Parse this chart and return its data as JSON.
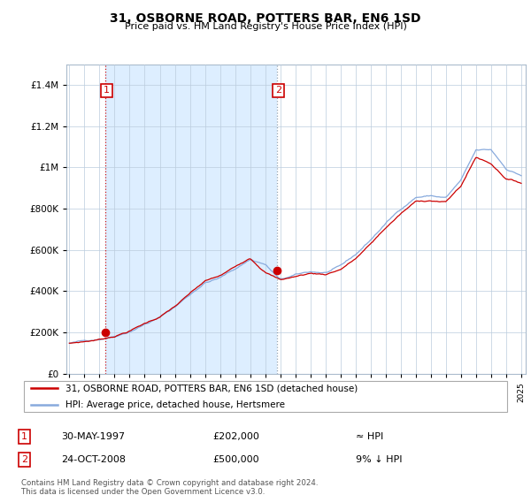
{
  "title": "31, OSBORNE ROAD, POTTERS BAR, EN6 1SD",
  "subtitle": "Price paid vs. HM Land Registry's House Price Index (HPI)",
  "legend_line1": "31, OSBORNE ROAD, POTTERS BAR, EN6 1SD (detached house)",
  "legend_line2": "HPI: Average price, detached house, Hertsmere",
  "annotation1_date": "30-MAY-1997",
  "annotation1_price": "£202,000",
  "annotation1_hpi": "≈ HPI",
  "annotation2_date": "24-OCT-2008",
  "annotation2_price": "£500,000",
  "annotation2_hpi": "9% ↓ HPI",
  "footer": "Contains HM Land Registry data © Crown copyright and database right 2024.\nThis data is licensed under the Open Government Licence v3.0.",
  "red_color": "#cc0000",
  "blue_color": "#88aadd",
  "shade_color": "#ddeeff",
  "ylim": [
    0,
    1500000
  ],
  "yticks": [
    0,
    200000,
    400000,
    600000,
    800000,
    1000000,
    1200000,
    1400000
  ],
  "sale1_x": 1997.41,
  "sale1_y": 202000,
  "sale2_x": 2008.81,
  "sale2_y": 500000,
  "xlim_left": 1994.8,
  "xlim_right": 2025.3
}
